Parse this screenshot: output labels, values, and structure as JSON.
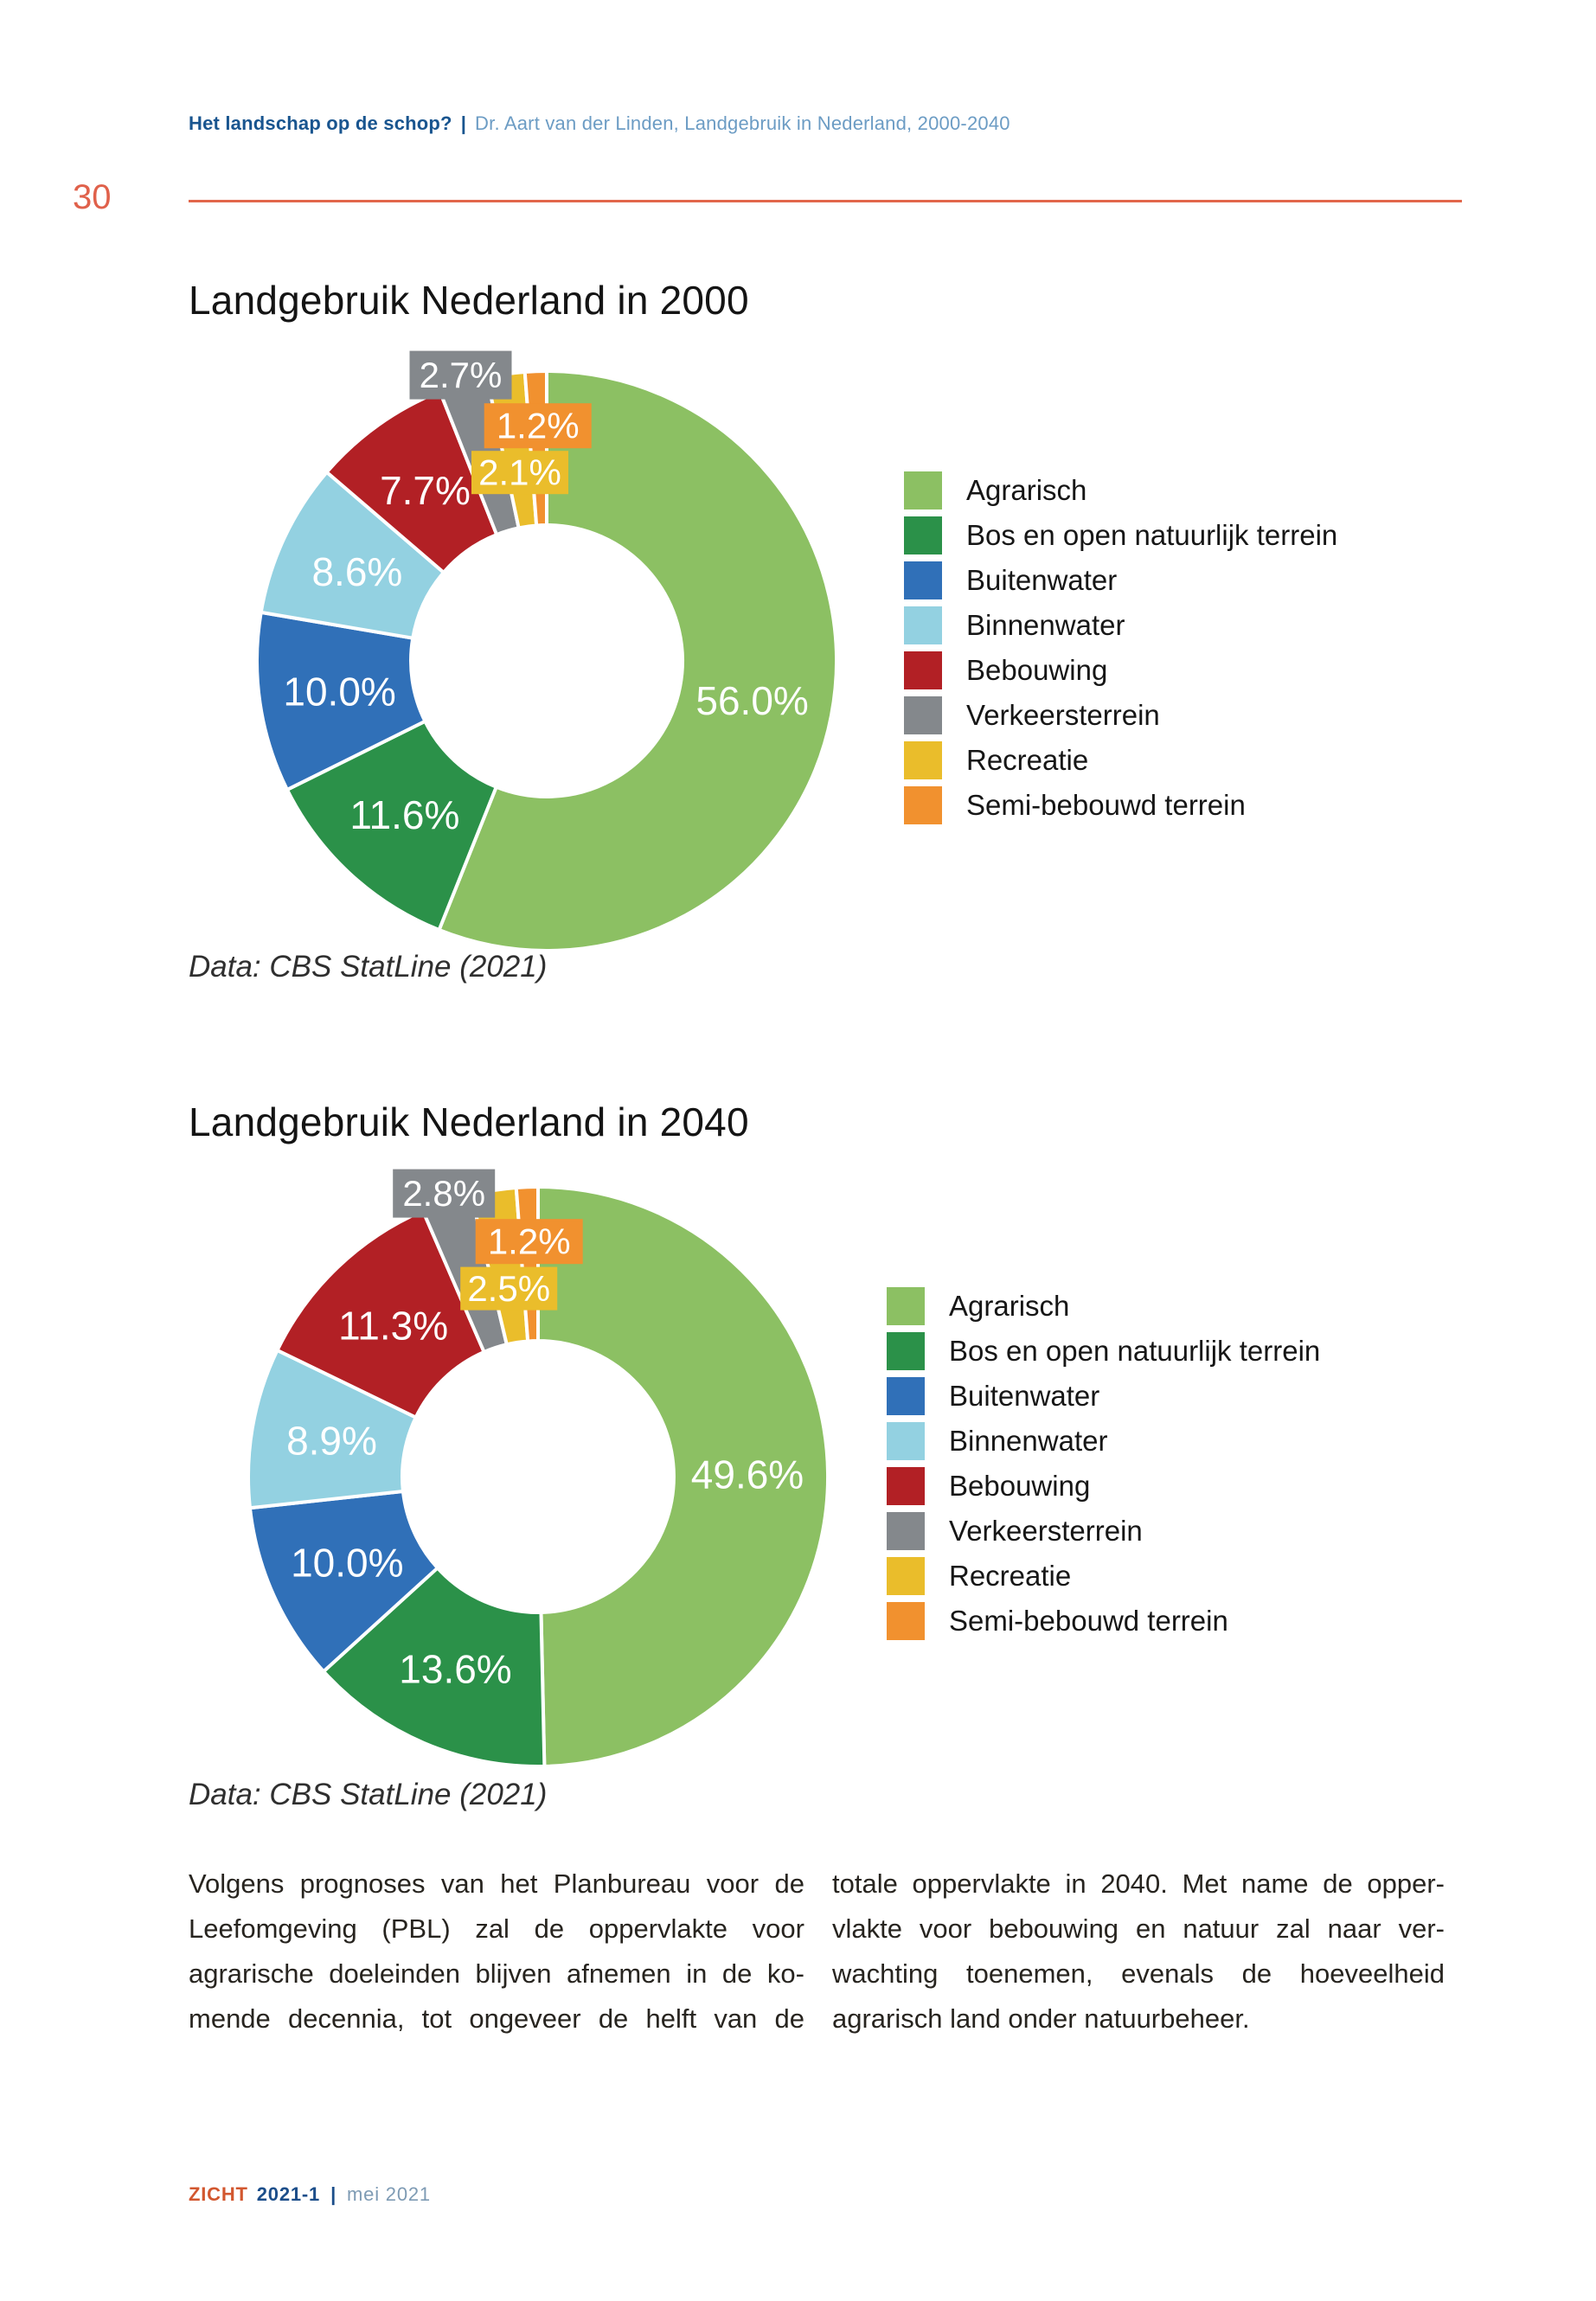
{
  "page_number": "30",
  "header": {
    "title_bold": "Het landschap op de schop?",
    "separator": "|",
    "subtitle": "Dr. Aart van der Linden, Landgebruik in Nederland, 2000-2040"
  },
  "colors": {
    "accent_orange": "#E2664B",
    "navy": "#19558F",
    "light_blue_text": "#6C9CC4",
    "footer_brand": "#D2572F",
    "footer_date": "#7E9BB4"
  },
  "chart_data": [
    {
      "type": "pie",
      "subtype": "donut",
      "title": "Landgebruik Nederland in 2000",
      "source": "Data: CBS StatLine (2021)",
      "legend_position": "right",
      "categories": [
        "Agrarisch",
        "Bos en open natuurlijk terrein",
        "Buitenwater",
        "Binnenwater",
        "Bebouwing",
        "Verkeersterrein",
        "Recreatie",
        "Semi-bebouwd terrein"
      ],
      "values": [
        56.0,
        11.6,
        10.0,
        8.6,
        7.7,
        2.7,
        2.1,
        1.2
      ],
      "labels": [
        "56.0%",
        "11.6%",
        "10.0%",
        "8.6%",
        "7.7%",
        "2.7%",
        "2.1%",
        "1.2%"
      ],
      "colors": [
        "#8CC063",
        "#2B9149",
        "#3070B8",
        "#93D1E1",
        "#B22025",
        "#84888C",
        "#EABD2B",
        "#F1912F"
      ]
    },
    {
      "type": "pie",
      "subtype": "donut",
      "title": "Landgebruik Nederland in 2040",
      "source": "Data: CBS StatLine (2021)",
      "legend_position": "right",
      "categories": [
        "Agrarisch",
        "Bos en open natuurlijk terrein",
        "Buitenwater",
        "Binnenwater",
        "Bebouwing",
        "Verkeersterrein",
        "Recreatie",
        "Semi-bebouwd terrein"
      ],
      "values": [
        49.6,
        13.6,
        10.0,
        8.9,
        11.3,
        2.8,
        2.5,
        1.2
      ],
      "labels": [
        "49.6%",
        "13.6%",
        "10.0%",
        "8.9%",
        "11.3%",
        "2.8%",
        "2.5%",
        "1.2%"
      ],
      "colors": [
        "#8CC063",
        "#2B9149",
        "#3070B8",
        "#93D1E1",
        "#B22025",
        "#84888C",
        "#EABD2B",
        "#F1912F"
      ]
    }
  ],
  "body": {
    "columns": [
      {
        "justify_last_line": true,
        "lines": [
          "Volgens prognoses van het Planbureau voor de",
          "Leefomgeving (PBL) zal de oppervlakte voor",
          "agrarische doeleinden blijven afnemen in de ko-",
          "mende decennia, tot ongeveer de helft van de"
        ]
      },
      {
        "justify_last_line": false,
        "lines": [
          "totale oppervlakte in 2040. Met name de opper-",
          "vlakte voor bebouwing en natuur zal naar ver-",
          "wachting toenemen, evenals de hoeveelheid",
          "agrarisch land onder natuurbeheer."
        ]
      }
    ]
  },
  "footer": {
    "brand": "ZICHT",
    "issue": "2021-1",
    "separator": "|",
    "date": "mei 2021"
  }
}
